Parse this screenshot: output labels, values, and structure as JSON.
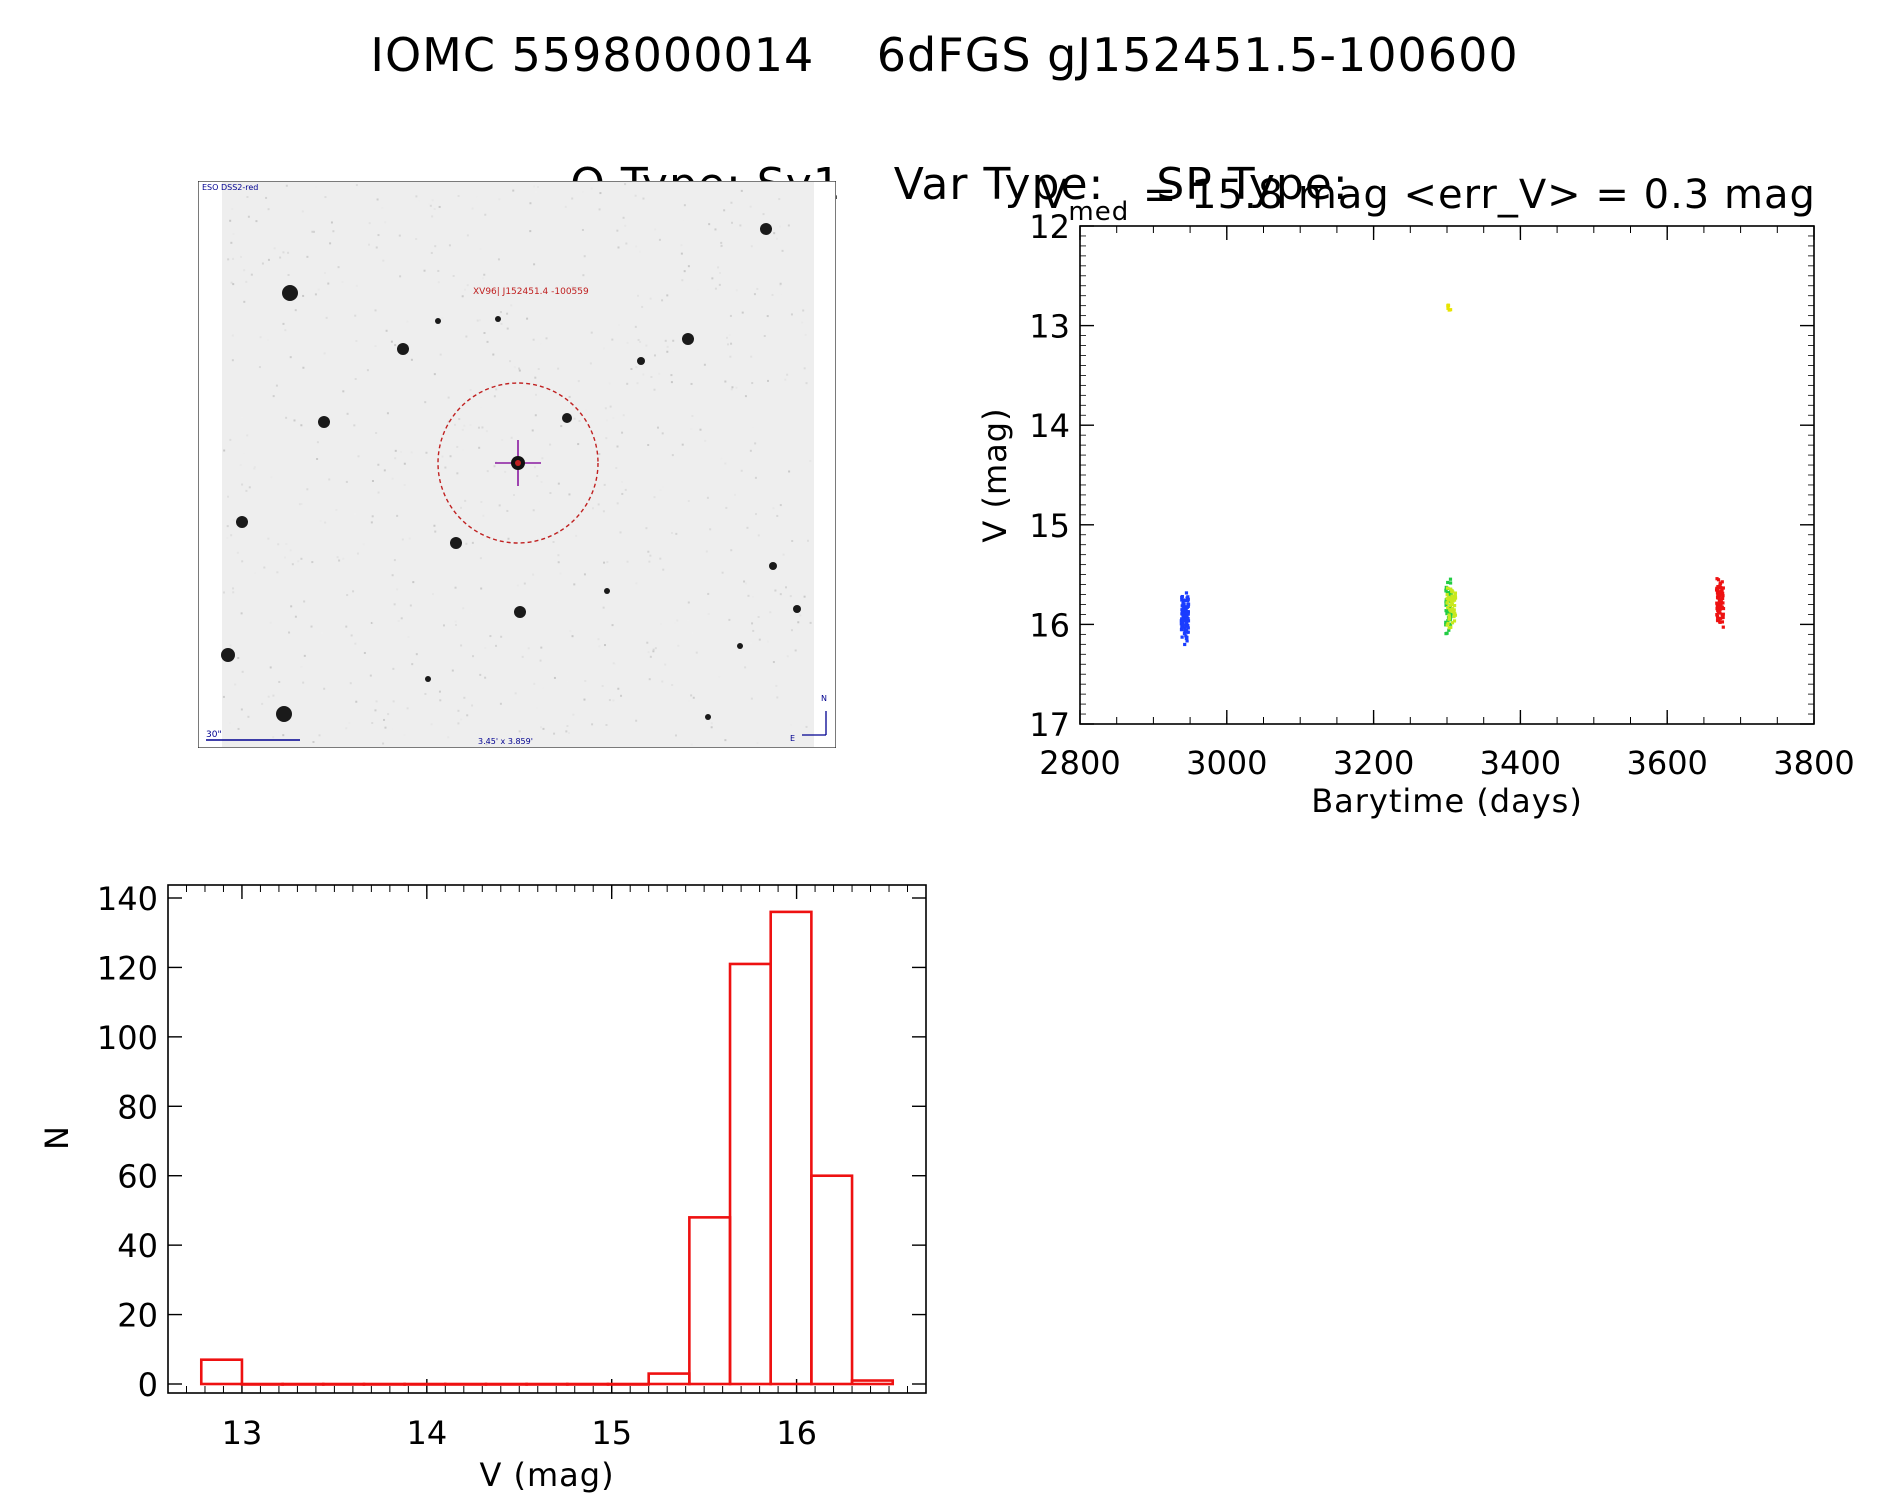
{
  "header": {
    "line1_left": "IOMC 5598000014",
    "line1_right": "6dFGS gJ152451.5-100600",
    "otype": "O Type: Sy1",
    "vartype": "Var Type:",
    "sptype": "SP Type:"
  },
  "image_stamp": {
    "survey_label": "ESO DSS2-red",
    "target_label": "XV96| J152451.4 -100559",
    "scale_label": "30\"",
    "size_label": "3.45' x 3.859'",
    "compass_north": "N",
    "compass_east": "E",
    "colors": {
      "circle": "#c02020",
      "crosshair": "#8a1aa0",
      "annotation": "#000090",
      "background": "#eeeeee"
    }
  },
  "chart_data": [
    {
      "type": "scatter",
      "subtitle_prefix": "V",
      "subtitle_sub": "med",
      "subtitle_rest": " = 15.8 mag <err_V> = 0.3 mag",
      "xlabel": "Barytime (days)",
      "ylabel": "V (mag)",
      "xlim": [
        2800,
        3800
      ],
      "ylim": [
        17,
        12
      ],
      "y_inverted": true,
      "xticks": [
        2800,
        3000,
        3200,
        3400,
        3600,
        3800
      ],
      "yticks": [
        12,
        13,
        14,
        15,
        16,
        17
      ],
      "series": [
        {
          "color": "#1a3cff",
          "x_range": [
            2938,
            2948
          ],
          "y_range": [
            15.55,
            16.25
          ],
          "n": 90
        },
        {
          "color": "#22cc44",
          "x_range": [
            3298,
            3306
          ],
          "y_range": [
            15.35,
            16.2
          ],
          "n": 45
        },
        {
          "color": "#c8e81e",
          "x_range": [
            3300,
            3312
          ],
          "y_range": [
            15.45,
            16.15
          ],
          "n": 55
        },
        {
          "color": "#e8e400",
          "x_range": [
            3301,
            3305
          ],
          "y_range": [
            12.75,
            12.9
          ],
          "n": 6
        },
        {
          "color": "#ee1111",
          "x_range": [
            3667,
            3677
          ],
          "y_range": [
            15.4,
            16.15
          ],
          "n": 80
        }
      ]
    },
    {
      "type": "bar",
      "style": "step-histogram",
      "xlabel": "V (mag)",
      "ylabel": "N",
      "xlim": [
        12.6,
        16.7
      ],
      "ylim": [
        0,
        140
      ],
      "xticks": [
        13,
        14,
        15,
        16
      ],
      "yticks": [
        0,
        20,
        40,
        60,
        80,
        100,
        120,
        140
      ],
      "bin_edges": [
        12.78,
        13.0,
        13.22,
        13.44,
        13.66,
        13.88,
        14.1,
        14.32,
        14.54,
        14.76,
        14.98,
        15.2,
        15.42,
        15.64,
        15.86,
        16.08,
        16.3,
        16.52
      ],
      "values": [
        7,
        0,
        0,
        0,
        0,
        0,
        0,
        0,
        0,
        0,
        0,
        3,
        48,
        121,
        136,
        60,
        1
      ],
      "color": "#ee1111"
    }
  ]
}
